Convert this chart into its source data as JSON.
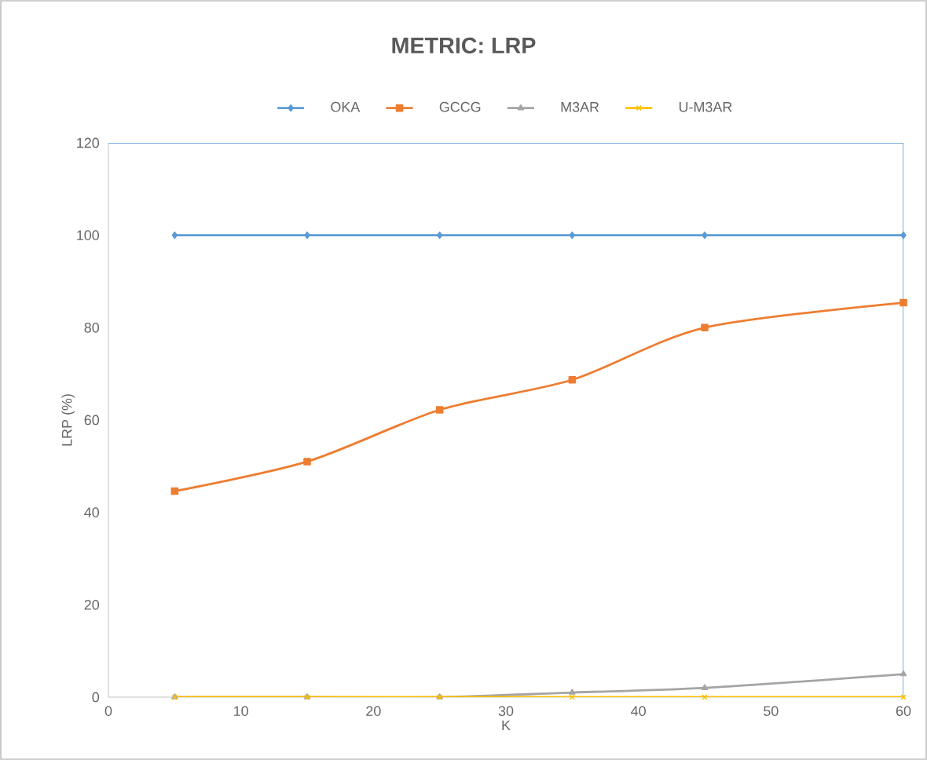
{
  "chart_data": {
    "type": "line",
    "title": "METRIC: LRP",
    "xlabel": "K",
    "ylabel": "LRP (%)",
    "x": [
      5,
      15,
      25,
      35,
      45,
      60
    ],
    "series": [
      {
        "name": "OKA",
        "color": "#5b9bd5",
        "marker": "diamond",
        "values": [
          100,
          100,
          100,
          100,
          100,
          100
        ]
      },
      {
        "name": "GCCG",
        "color": "#ed7d31",
        "marker": "square",
        "values": [
          44.6,
          51,
          62.2,
          68.7,
          80,
          85.4
        ]
      },
      {
        "name": "M3AR",
        "color": "#a5a5a5",
        "marker": "triangle",
        "values": [
          0,
          0,
          0,
          1,
          2,
          5
        ]
      },
      {
        "name": "U-M3AR",
        "color": "#ffc000",
        "marker": "cross",
        "values": [
          0,
          0,
          0,
          0,
          0,
          0
        ]
      }
    ],
    "xlim": [
      0,
      60
    ],
    "xticks": [
      0,
      10,
      20,
      30,
      40,
      50,
      60
    ],
    "ylim": [
      0,
      120
    ],
    "yticks": [
      0,
      20,
      40,
      60,
      80,
      100,
      120
    ],
    "grid": false,
    "legend": "top",
    "line_style": "solid"
  }
}
